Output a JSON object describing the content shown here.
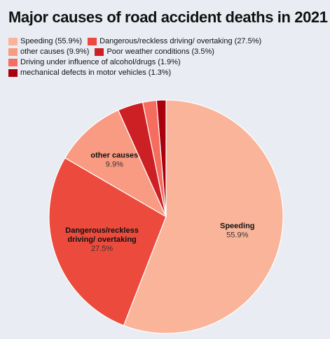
{
  "chart_data": {
    "type": "pie",
    "title": "Major causes of road accident deaths in 2021",
    "legend_position": "top-left",
    "slices": [
      {
        "label": "Speeding",
        "legend": "Speeding (55.9%)",
        "value": 55.9,
        "value_label": "55.9%",
        "color": "#f9b49a",
        "show_label": true
      },
      {
        "label": "Dangerous/reckless driving/ overtaking",
        "legend": "Dangerous/reckless driving/ overtaking (27.5%)",
        "value": 27.5,
        "value_label": "27.5%",
        "color": "#ec4a3c",
        "show_label": true
      },
      {
        "label": "other causes",
        "legend": "other causes (9.9%)",
        "value": 9.9,
        "value_label": "9.9%",
        "color": "#f99a82",
        "show_label": true
      },
      {
        "label": "Poor weather conditions",
        "legend": "Poor weather conditions (3.5%)",
        "value": 3.5,
        "value_label": "3.5%",
        "color": "#cc2025",
        "show_label": false
      },
      {
        "label": "Driving under influence of alcohol/drugs",
        "legend": "Driving under influence of alcohol/drugs (1.9%)",
        "value": 1.9,
        "value_label": "1.9%",
        "color": "#f46d5e",
        "show_label": false
      },
      {
        "label": "mechanical defects in motor vehicles",
        "legend": "mechanical defects in motor vehicles (1.3%)",
        "value": 1.3,
        "value_label": "1.3%",
        "color": "#a8000d",
        "show_label": false
      }
    ]
  }
}
